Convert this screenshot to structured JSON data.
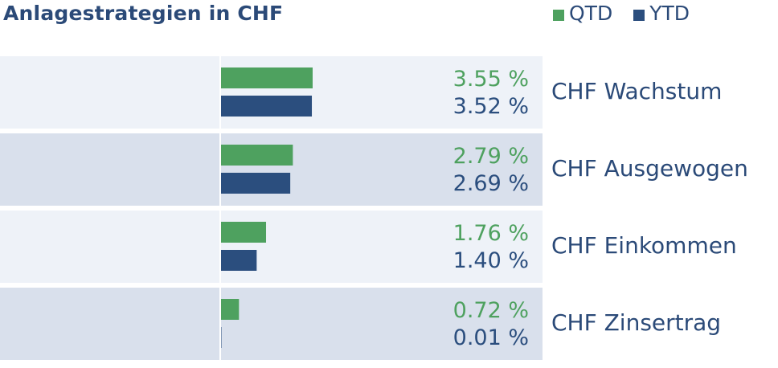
{
  "title": "Anlagestrategien in CHF",
  "legend": {
    "qtd_label": "QTD",
    "ytd_label": "YTD"
  },
  "colors": {
    "qtd": "#4ea15f",
    "ytd": "#2b4e7e",
    "row_light": "#eef2f8",
    "row_dark": "#d9e0ec",
    "text": "#2b4a78"
  },
  "chart_data": {
    "type": "bar",
    "orientation": "horizontal",
    "title": "Anlagestrategien in CHF",
    "categories": [
      "CHF Wachstum",
      "CHF Ausgewogen",
      "CHF Einkommen",
      "CHF Zinsertrag"
    ],
    "series": [
      {
        "name": "QTD",
        "values": [
          3.55,
          2.79,
          1.76,
          0.72
        ],
        "labels": [
          "3.55 %",
          "2.79 %",
          "1.76 %",
          "0.72 %"
        ]
      },
      {
        "name": "YTD",
        "values": [
          3.52,
          2.69,
          1.4,
          0.01
        ],
        "labels": [
          "3.52 %",
          "2.69 %",
          "1.40 %",
          "0.01 %"
        ]
      }
    ],
    "legend_position": "top-right",
    "grid": false
  }
}
